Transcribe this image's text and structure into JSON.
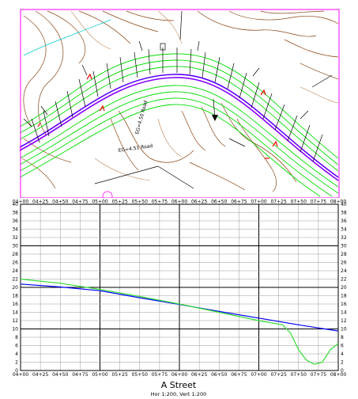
{
  "plan": {
    "colors": {
      "border": "#ff00ff",
      "alignment": "#8800ff",
      "offsets": "#00dd00",
      "contours": "#8b4513",
      "contours_light": "#c08050",
      "water": "#00cccc",
      "annotations": "#000000",
      "markers": "#ff0000"
    },
    "labels": {
      "road_note_1": "EG=4.51 Road",
      "road_note_2": "EG=4.50 Road"
    }
  },
  "profile": {
    "title": "A Street",
    "scale_note": "Hor 1:200, Vert 1:200",
    "colors": {
      "design": "#0000ff",
      "existing": "#33dd33",
      "grid_major": "#000000",
      "grid_minor": "#999999"
    },
    "station_labels_top": [
      "04+00",
      "04+25",
      "04+50",
      "04+75",
      "05+00",
      "05+25",
      "05+50",
      "05+75",
      "06+00",
      "06+25",
      "06+50",
      "06+75",
      "07+00",
      "07+25",
      "07+50",
      "07+75",
      "08+00"
    ],
    "station_labels_bottom": [
      "04+00",
      "04+25",
      "04+50",
      "04+75",
      "05+00",
      "05+25",
      "05+50",
      "05+75",
      "06+00",
      "06+25",
      "06+50",
      "06+75",
      "07+00",
      "07+25",
      "07+50",
      "07+75",
      "08+00"
    ],
    "elevation_labels": [
      "0",
      "2",
      "4",
      "6",
      "8",
      "10",
      "12",
      "14",
      "16",
      "18",
      "20",
      "22",
      "24",
      "26",
      "28",
      "30",
      "32",
      "34",
      "36",
      "38",
      "40"
    ]
  },
  "chart_data": {
    "type": "line",
    "title": "A Street",
    "xlabel": "",
    "ylabel": "",
    "xlim": [
      400,
      800
    ],
    "ylim": [
      0,
      40
    ],
    "grid": true,
    "series": [
      {
        "x": [
          400,
          450,
          500,
          550,
          600,
          650,
          700,
          750,
          800
        ],
        "values": [
          20.8,
          20.1,
          19.2,
          17.5,
          15.9,
          14.2,
          12.6,
          11.0,
          9.5
        ]
      },
      {
        "x": [
          400,
          450,
          500,
          550,
          600,
          650,
          700,
          730,
          740,
          750,
          760,
          770,
          780,
          790,
          800
        ],
        "values": [
          22.0,
          21.0,
          19.5,
          17.8,
          16.0,
          14.0,
          12.0,
          11.0,
          9.0,
          5.0,
          2.5,
          1.5,
          2.0,
          5.0,
          6.5
        ]
      }
    ]
  }
}
